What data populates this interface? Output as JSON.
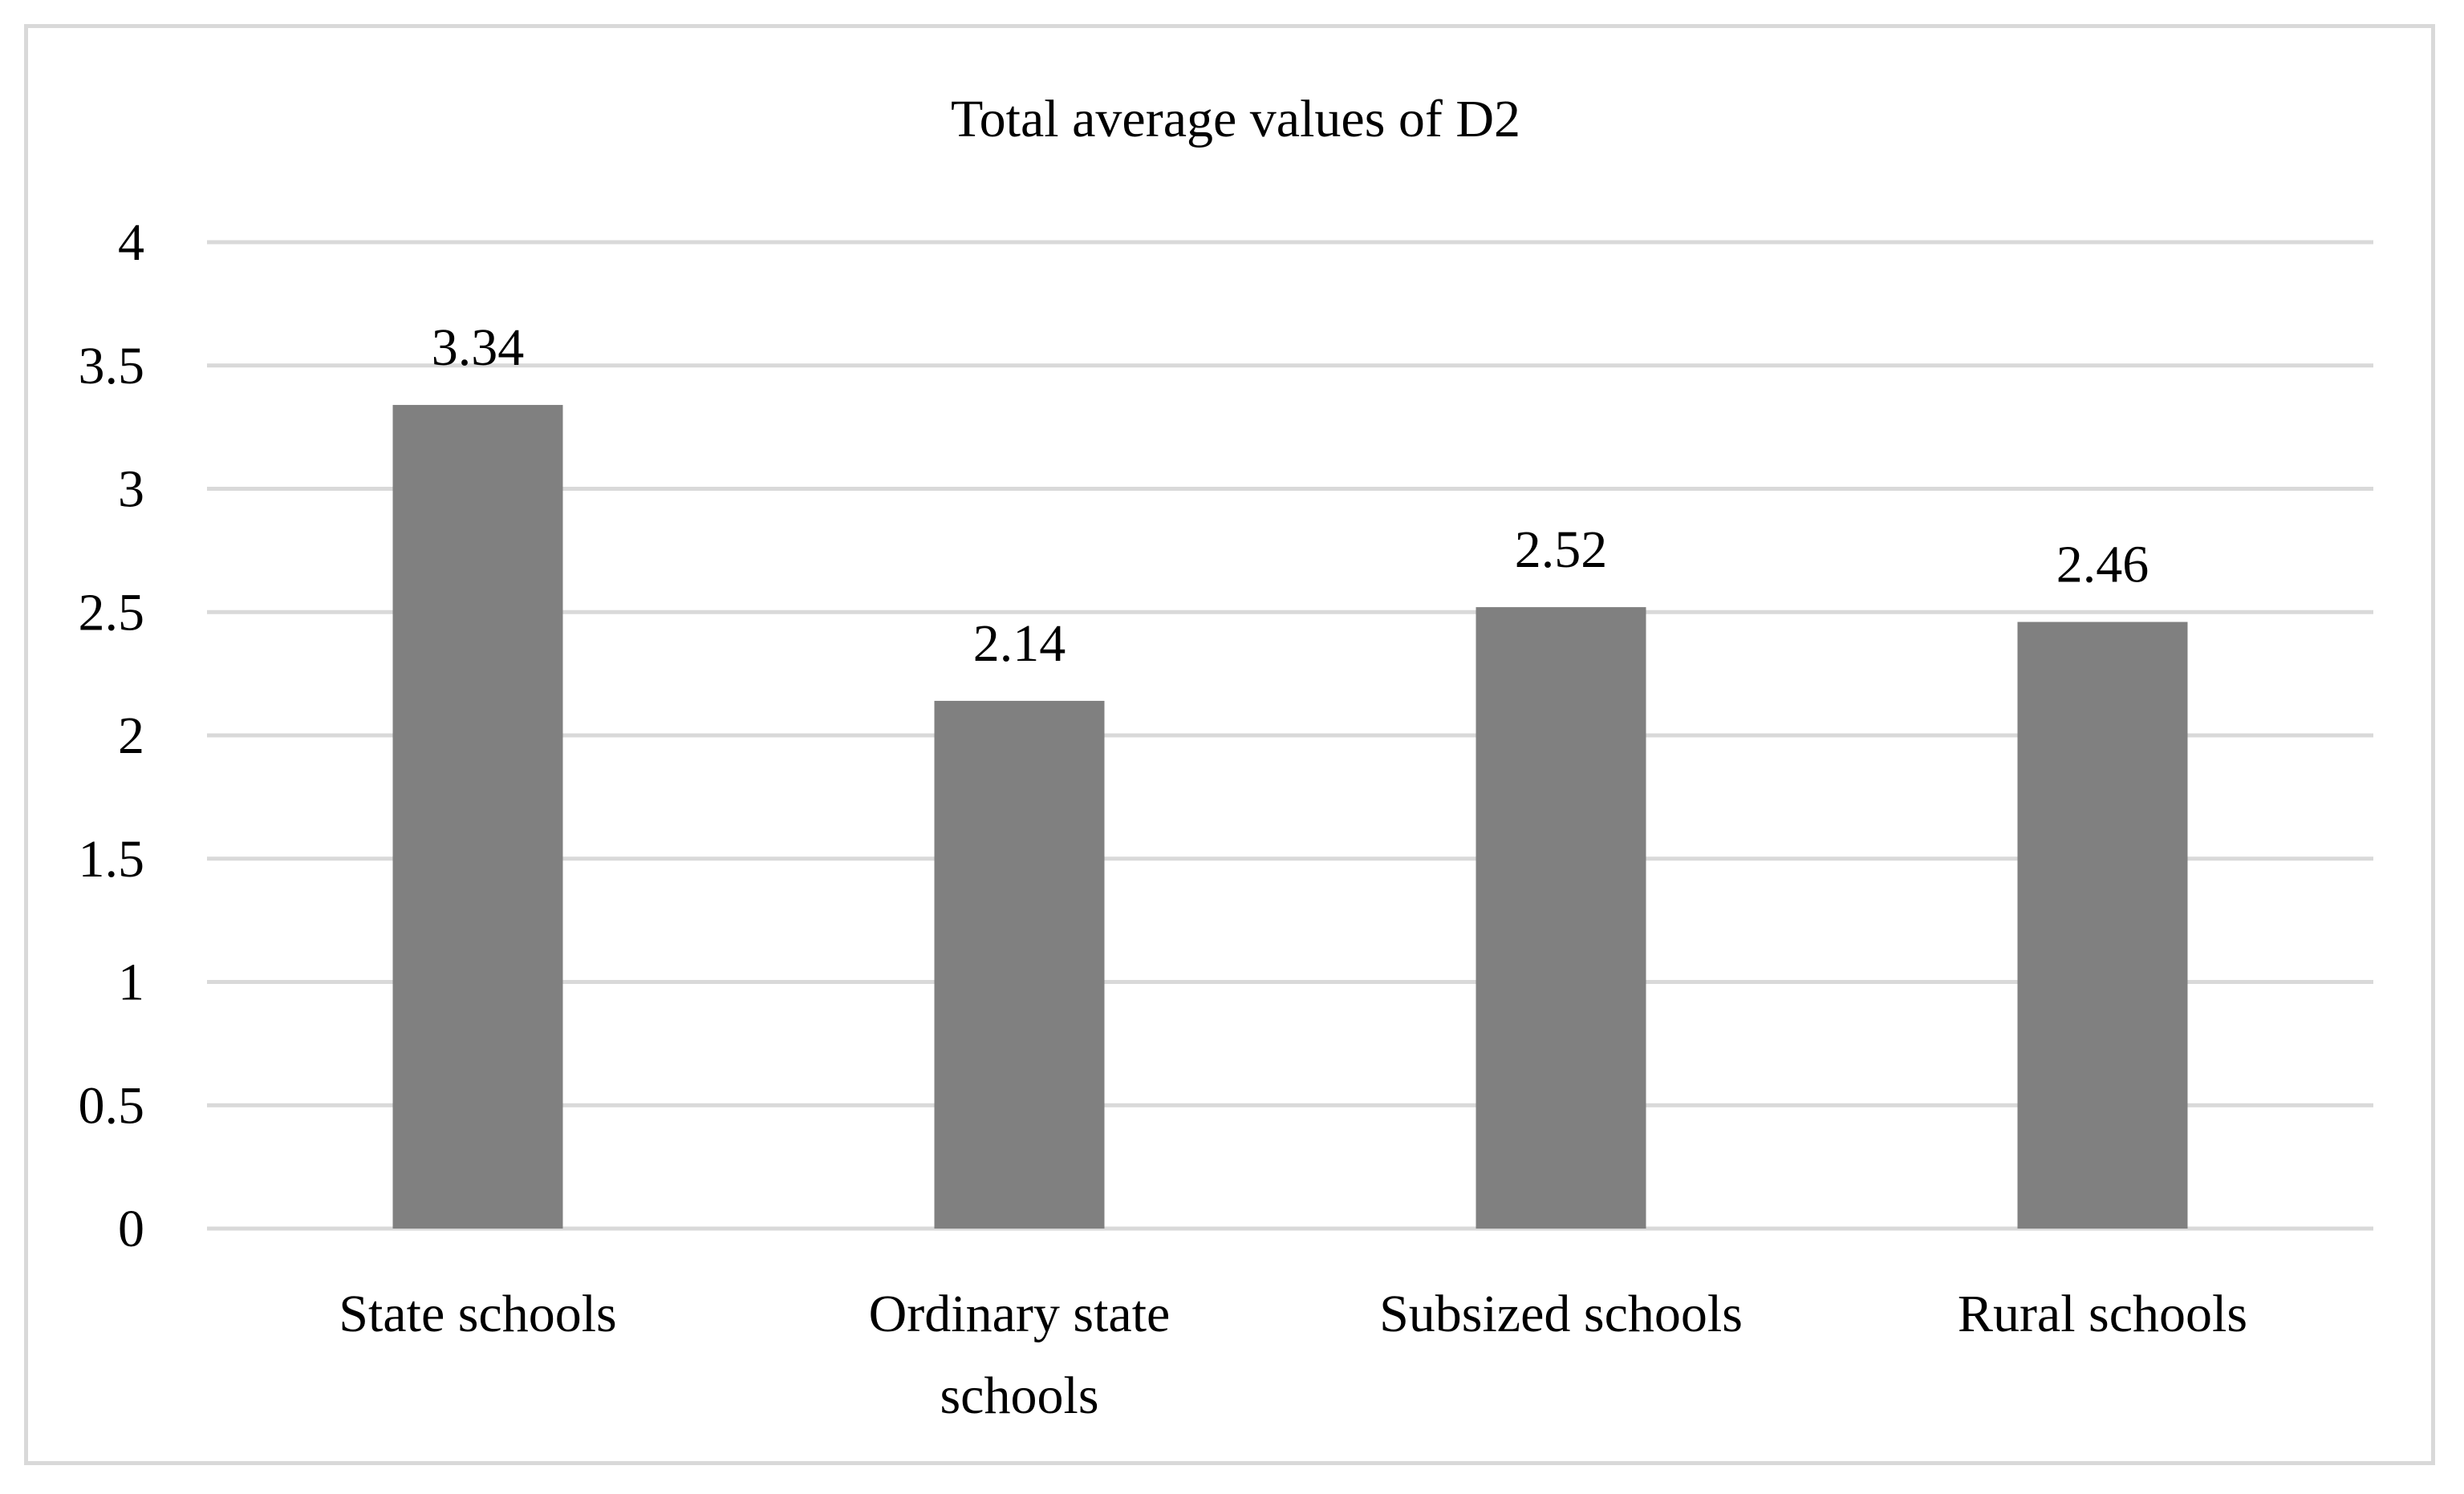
{
  "chart_data": {
    "type": "bar",
    "title": "Total average values of D2",
    "categories": [
      [
        "State schools"
      ],
      [
        "Ordinary state",
        "schools"
      ],
      [
        "Subsized schools"
      ],
      [
        "Rural schools"
      ]
    ],
    "values": [
      3.34,
      2.14,
      2.52,
      2.46
    ],
    "data_labels": [
      "3.34",
      "2.14",
      "2.52",
      "2.46"
    ],
    "yticks": [
      "0",
      "0.5",
      "1",
      "1.5",
      "2",
      "2.5",
      "3",
      "3.5",
      "4"
    ],
    "ylim": [
      0,
      4
    ],
    "xlabel": "",
    "ylabel": "",
    "grid": true,
    "legend": "none",
    "colors": {
      "bar": "#808080",
      "grid": "#d9d9d9",
      "frame": "#d9d9d9",
      "text": "#000000"
    }
  }
}
